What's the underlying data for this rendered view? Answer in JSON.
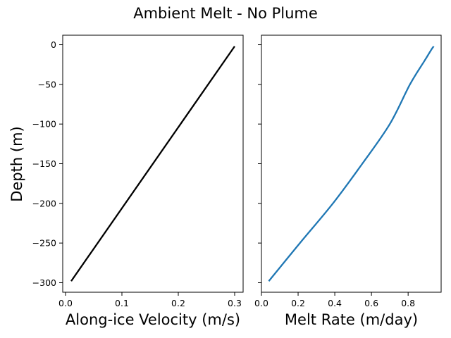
{
  "figure": {
    "suptitle": "Ambient Melt - No Plume",
    "ylabel": "Depth (m)"
  },
  "chart_data": [
    {
      "type": "line",
      "xlabel": "Along-ice Velocity (m/s)",
      "ylabel": "Depth (m)",
      "xlim": [
        -0.005,
        0.315
      ],
      "ylim": [
        -312,
        12
      ],
      "xticks": [
        0.0,
        0.1,
        0.2,
        0.3
      ],
      "xtick_labels": [
        "0.0",
        "0.1",
        "0.2",
        "0.3"
      ],
      "yticks": [
        0,
        -50,
        -100,
        -150,
        -200,
        -250,
        -300
      ],
      "ytick_labels": [
        "0",
        "−50",
        "−100",
        "−150",
        "−200",
        "−250",
        "−300"
      ],
      "grid": false,
      "series": [
        {
          "color": "#000000",
          "x": [
            0.01,
            0.3
          ],
          "y": [
            -298,
            -2
          ]
        }
      ]
    },
    {
      "type": "line",
      "xlabel": "Melt Rate (m/day)",
      "xlim": [
        0.0,
        0.98
      ],
      "ylim": [
        -312,
        12
      ],
      "xticks": [
        0.0,
        0.2,
        0.4,
        0.6,
        0.8
      ],
      "xtick_labels": [
        "0.0",
        "0.2",
        "0.4",
        "0.6",
        "0.8"
      ],
      "yticks": [
        0,
        -50,
        -100,
        -150,
        -200,
        -250,
        -300
      ],
      "shared_y": true,
      "grid": false,
      "series": [
        {
          "color": "#1f77b4",
          "x": [
            0.04,
            0.21,
            0.39,
            0.55,
            0.7,
            0.81,
            0.89,
            0.93,
            0.94
          ],
          "y": [
            -298,
            -250,
            -200,
            -150,
            -100,
            -50,
            -20,
            -5,
            -2
          ]
        }
      ]
    }
  ]
}
